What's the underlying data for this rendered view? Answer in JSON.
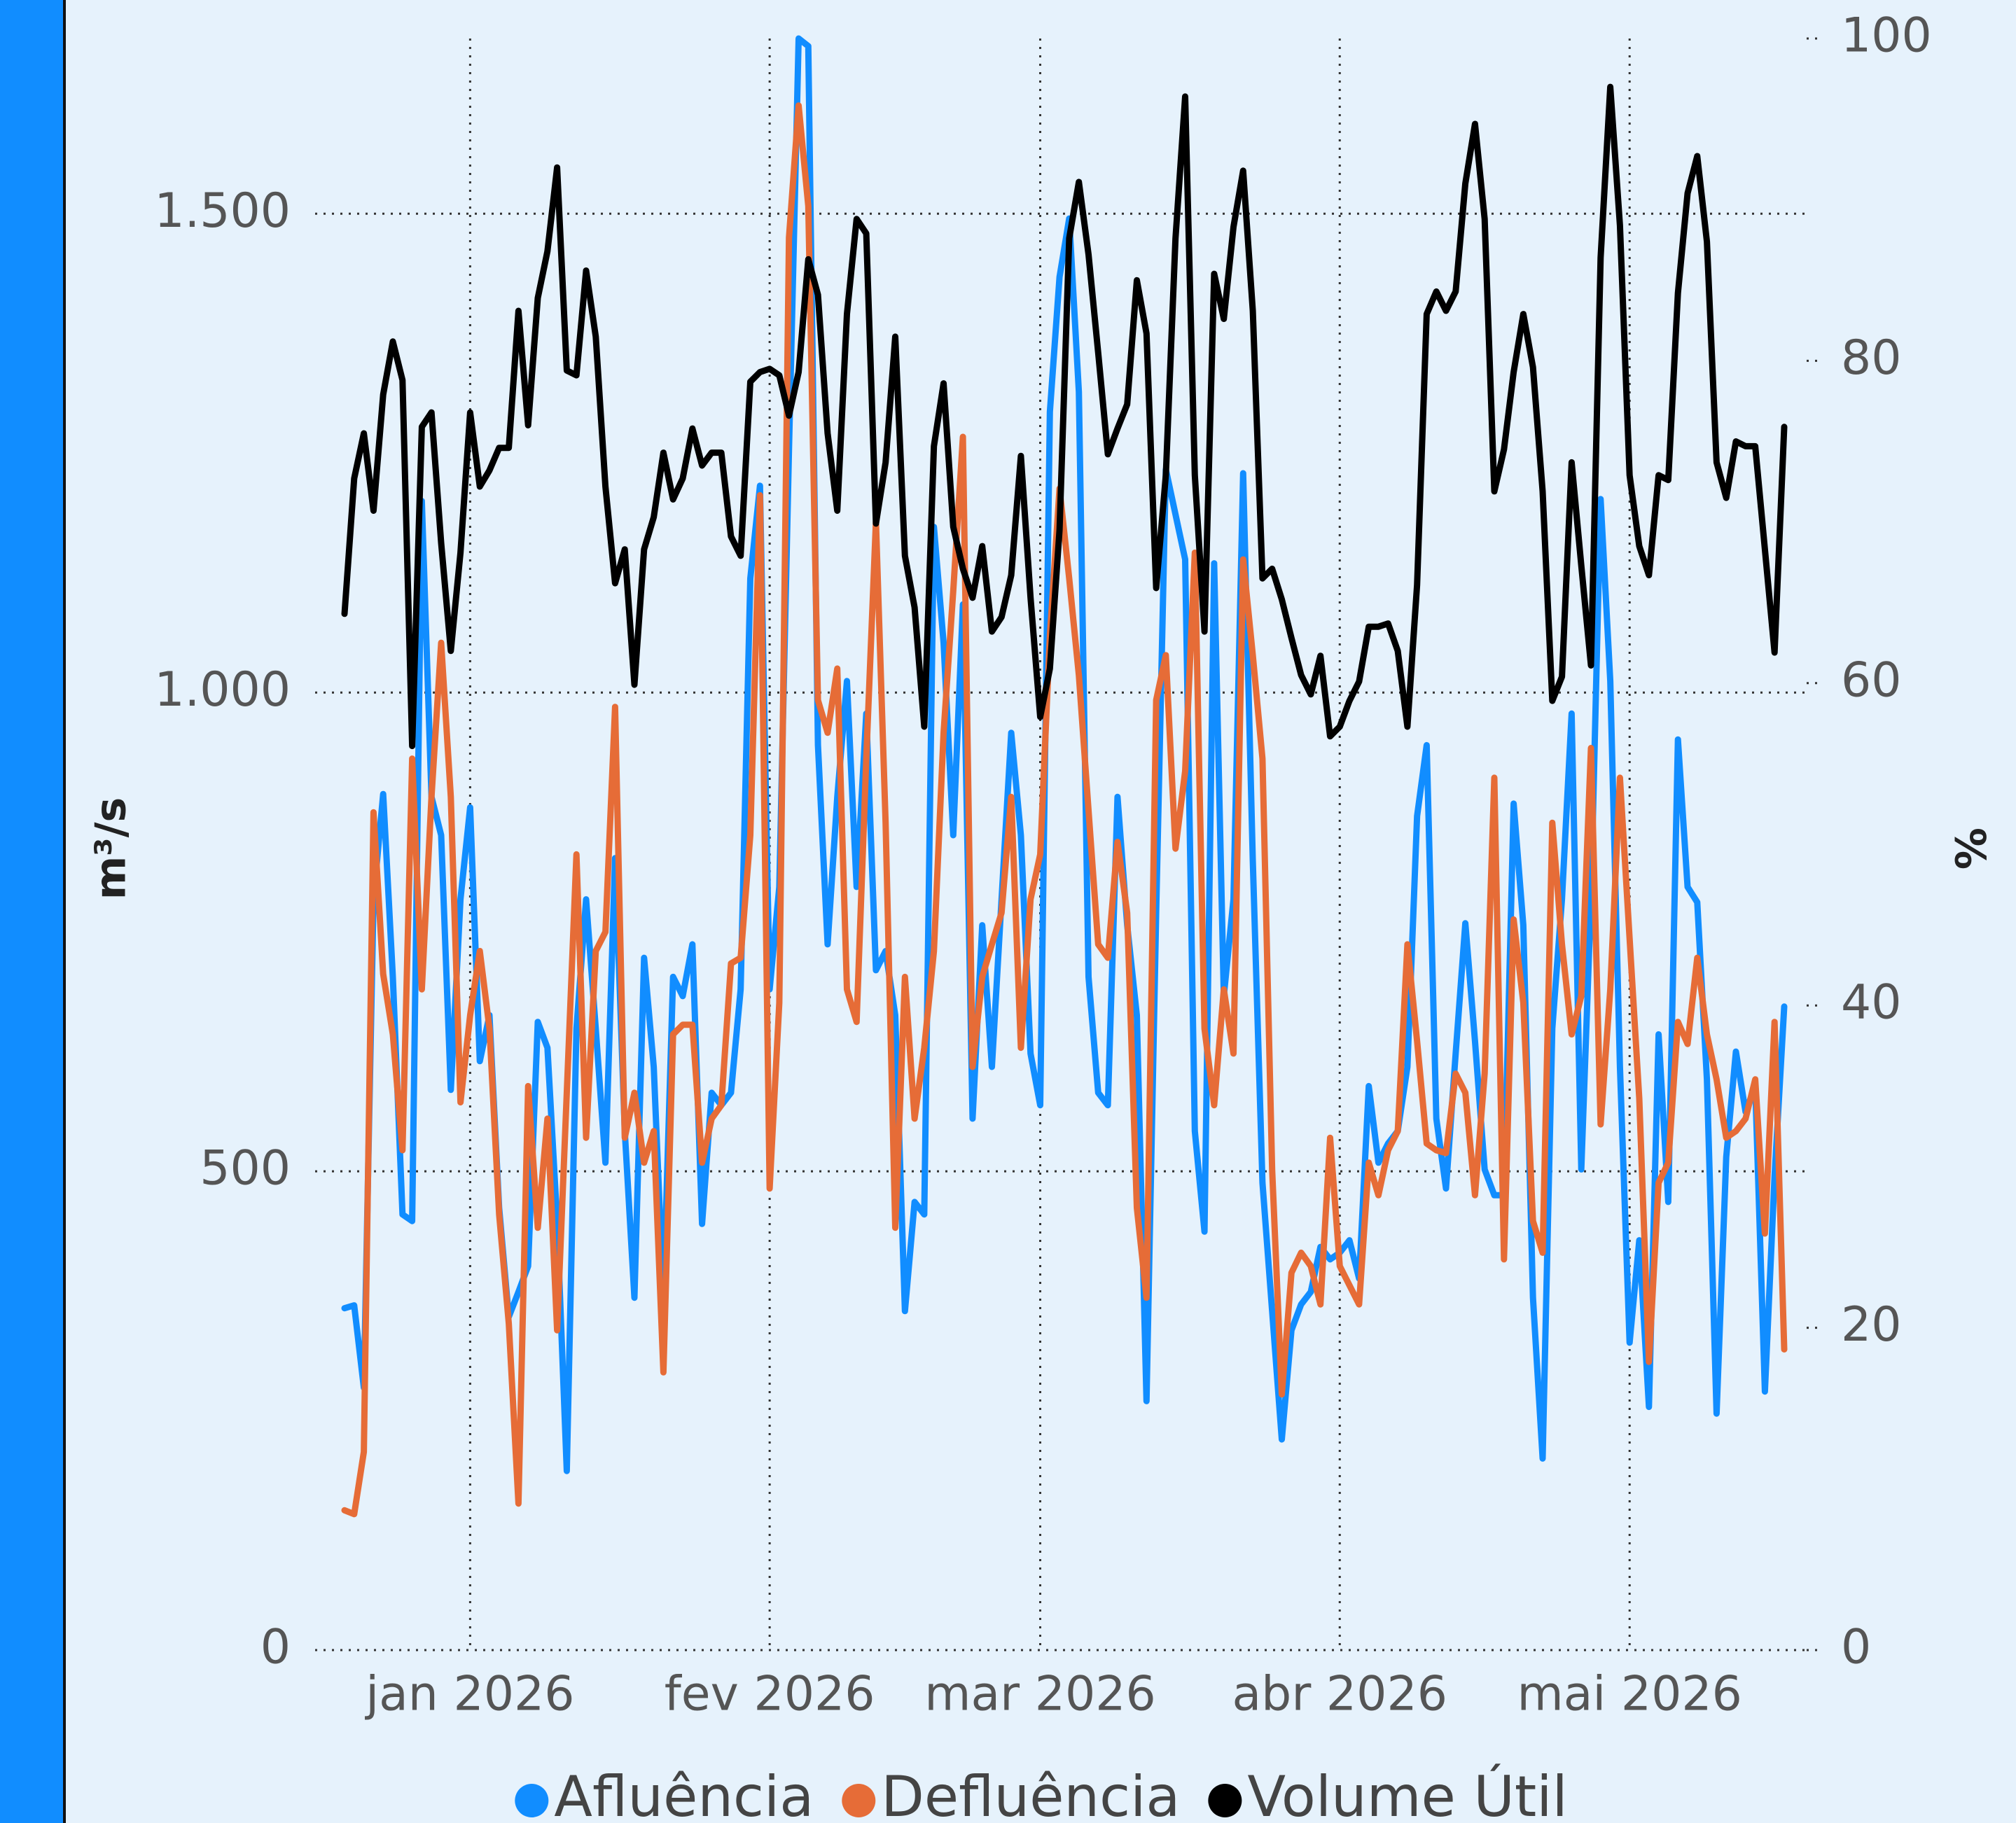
{
  "chart_data": {
    "type": "line",
    "categories": [
      null,
      null,
      null,
      null,
      null,
      null,
      null,
      null,
      null,
      null,
      null,
      null,
      null,
      "jan 2026",
      null,
      null,
      null,
      null,
      null,
      null,
      null,
      null,
      null,
      null,
      null,
      null,
      null,
      null,
      null,
      null,
      null,
      null,
      null,
      null,
      null,
      null,
      null,
      null,
      null,
      null,
      null,
      null,
      null,
      null,
      "fev 2026",
      null,
      null,
      null,
      null,
      null,
      null,
      null,
      null,
      null,
      null,
      null,
      null,
      null,
      null,
      null,
      null,
      null,
      null,
      null,
      null,
      null,
      null,
      null,
      null,
      null,
      null,
      null,
      "mar 2026",
      null,
      null,
      null,
      null,
      null,
      null,
      null,
      null,
      null,
      null,
      null,
      null,
      null,
      null,
      null,
      null,
      null,
      null,
      null,
      null,
      null,
      null,
      null,
      null,
      null,
      null,
      null,
      null,
      null,
      null,
      "abr 2026",
      null,
      null,
      null,
      null,
      null,
      null,
      null,
      null,
      null,
      null,
      null,
      null,
      null,
      null,
      null,
      null,
      null,
      null,
      null,
      null,
      null,
      null,
      null,
      null,
      null,
      null,
      null,
      null,
      null,
      "mai 2026",
      null,
      null,
      null,
      null,
      null,
      null,
      null,
      null,
      null,
      null,
      null,
      null,
      null,
      null,
      null,
      null
    ],
    "series": [
      {
        "name": "Afluência",
        "color": "#118dff",
        "axis": "y",
        "values": [
          357,
          360,
          274,
          784,
          894,
          703,
          455,
          448,
          1200,
          891,
          851,
          585,
          784,
          880,
          615,
          663,
          462,
          348,
          374,
          401,
          656,
          629,
          448,
          187,
          649,
          784,
          649,
          509,
          827,
          542,
          368,
          723,
          609,
          368,
          703,
          683,
          737,
          445,
          582,
          569,
          582,
          690,
          1119,
          1216,
          690,
          797,
          1253,
          1683,
          1675,
          945,
          737,
          891,
          1012,
          797,
          978,
          710,
          730,
          663,
          354,
          468,
          455,
          1173,
          1052,
          851,
          1092,
          555,
          757,
          609,
          784,
          958,
          851,
          623,
          569,
          1293,
          1434,
          1495,
          1314,
          703,
          582,
          569,
          891,
          757,
          663,
          260,
          770,
          1233,
          1186,
          1139,
          542,
          437,
          1135,
          683,
          784,
          1229,
          824,
          488,
          354,
          220,
          334,
          361,
          374,
          421,
          408,
          415,
          428,
          388,
          589,
          509,
          529,
          542,
          609,
          871,
          945,
          555,
          482,
          623,
          759,
          636,
          502,
          475,
          475,
          884,
          757,
          368,
          200,
          649,
          784,
          978,
          502,
          784,
          1202,
          1012,
          609,
          321,
          428,
          254,
          643,
          468,
          951,
          797,
          781,
          596,
          247,
          515,
          625,
          562,
          589,
          270,
          495,
          672
        ]
      },
      {
        "name": "Defluência",
        "color": "#e66c37",
        "axis": "y",
        "values": [
          146,
          142,
          207,
          875,
          706,
          643,
          522,
          931,
          690,
          891,
          1052,
          891,
          572,
          663,
          730,
          649,
          455,
          341,
          153,
          589,
          441,
          555,
          334,
          582,
          831,
          535,
          730,
          750,
          985,
          535,
          582,
          509,
          542,
          290,
          643,
          653,
          653,
          509,
          555,
          569,
          717,
          723,
          851,
          1206,
          482,
          676,
          1475,
          1613,
          1508,
          992,
          958,
          1025,
          690,
          656,
          931,
          1179,
          864,
          441,
          703,
          555,
          629,
          730,
          958,
          1106,
          1267,
          609,
          703,
          737,
          770,
          891,
          629,
          784,
          831,
          1059,
          1213,
          1119,
          1018,
          877,
          737,
          723,
          844,
          770,
          462,
          368,
          992,
          1039,
          837,
          918,
          1146,
          649,
          569,
          690,
          623,
          1139,
          1039,
          931,
          502,
          267,
          394,
          415,
          401,
          361,
          535,
          401,
          381,
          361,
          509,
          475,
          522,
          542,
          737,
          636,
          529,
          522,
          519,
          602,
          582,
          475,
          602,
          911,
          408,
          763,
          676,
          448,
          415,
          864,
          737,
          643,
          683,
          942,
          549,
          690,
          911,
          743,
          576,
          301,
          488,
          509,
          656,
          633,
          723,
          643,
          596,
          535,
          542,
          555,
          596,
          435,
          656,
          314
        ]
      },
      {
        "name": "Volume Útil",
        "color": "#000000",
        "axis": "y2",
        "values": [
          64.3,
          72.7,
          75.5,
          70.7,
          77.9,
          81.2,
          78.8,
          56.1,
          75.9,
          76.8,
          68.7,
          62,
          68.1,
          76.8,
          72.2,
          73.2,
          74.6,
          74.6,
          83.1,
          76,
          83.9,
          86.8,
          92,
          79.4,
          79.1,
          85.6,
          81.5,
          72.2,
          66.2,
          68.3,
          59.9,
          68.3,
          70.3,
          74.3,
          71.4,
          72.7,
          75.8,
          73.5,
          74.3,
          74.3,
          69.1,
          67.9,
          78.7,
          79.3,
          79.5,
          79.1,
          76.6,
          79.3,
          86.3,
          84.1,
          75.5,
          70.7,
          82.9,
          88.8,
          87.9,
          69.9,
          73.7,
          81.5,
          67.9,
          64.7,
          57.3,
          74.7,
          78.6,
          69.7,
          67.1,
          65.3,
          68.5,
          63.2,
          64.1,
          66.7,
          74.1,
          65.3,
          57.9,
          60.9,
          69.5,
          87.6,
          91.1,
          86.6,
          80.5,
          74.2,
          75.8,
          77.3,
          85,
          81.7,
          65.9,
          72.9,
          87.6,
          96.4,
          72.9,
          63.2,
          85.4,
          82.6,
          88.3,
          91.8,
          83.1,
          66.5,
          67.1,
          65.2,
          62.8,
          60.5,
          59.3,
          61.7,
          56.7,
          57.3,
          58.9,
          60.1,
          63.5,
          63.5,
          63.7,
          62,
          57.3,
          66.1,
          82.9,
          84.3,
          83.1,
          84.3,
          91,
          94.7,
          88.8,
          71.9,
          74.5,
          79.3,
          82.9,
          79.6,
          71.9,
          58.9,
          60.4,
          73.7,
          67.3,
          61.1,
          86.4,
          97,
          88.4,
          72.9,
          68.5,
          66.7,
          72.9,
          72.6,
          84.2,
          90.4,
          92.7,
          87.4,
          73.7,
          71.5,
          75,
          74.7,
          74.7,
          68.3,
          61.9,
          75.9
        ]
      }
    ],
    "ylim": [
      0,
      1683
    ],
    "yticks": [
      0,
      500,
      {
        "value": 1000,
        "label": "1.000"
      },
      {
        "value": 1500,
        "label": "1.500"
      }
    ],
    "y2lim": [
      0,
      100
    ],
    "y2ticks": [
      0,
      20,
      40,
      60,
      80,
      100
    ],
    "ylabel": "m³/s",
    "y2label": "%",
    "grid": true,
    "legend": "bottom"
  }
}
